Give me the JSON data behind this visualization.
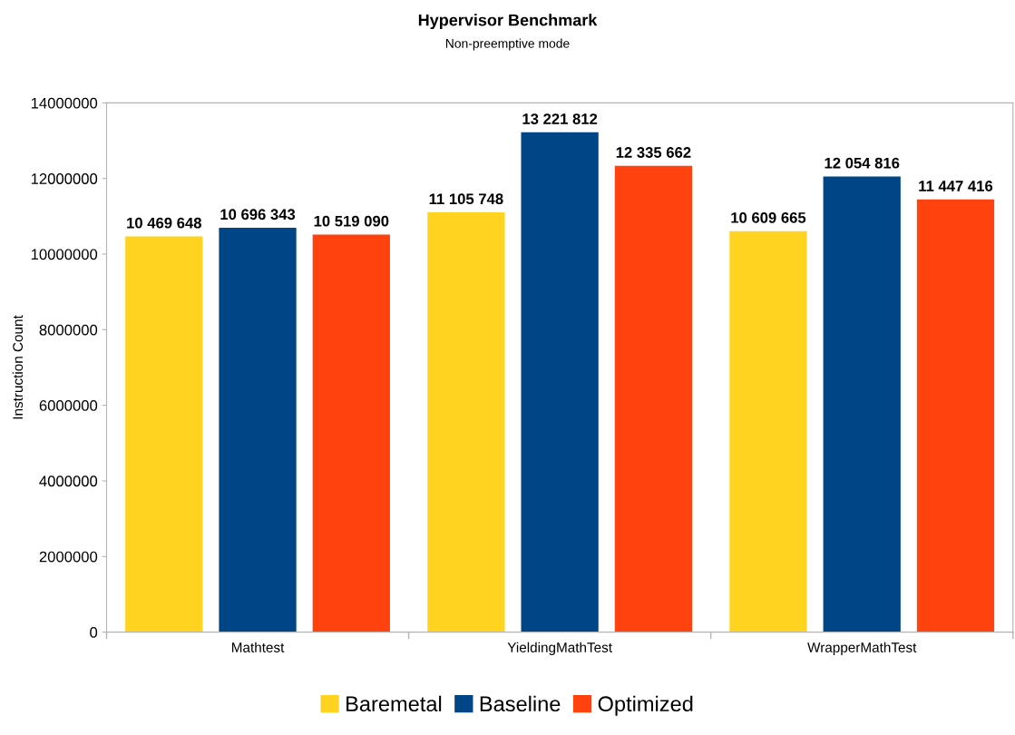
{
  "chart_data": {
    "type": "bar",
    "title": "Hypervisor Benchmark",
    "subtitle": "Non-preemptive mode",
    "ylabel": "Instruction Count",
    "categories": [
      "Mathtest",
      "YieldingMathTest",
      "WrapperMathTest"
    ],
    "series": [
      {
        "name": "Baremetal",
        "color": "#ffd320",
        "values": [
          10469648,
          11105748,
          10609665
        ],
        "value_labels": [
          "10 469 648",
          "11 105 748",
          "10 609 665"
        ]
      },
      {
        "name": "Baseline",
        "color": "#004586",
        "values": [
          10696343,
          13221812,
          12054816
        ],
        "value_labels": [
          "10 696 343",
          "13 221 812",
          "12 054 816"
        ]
      },
      {
        "name": "Optimized",
        "color": "#ff420e",
        "values": [
          10519090,
          12335662,
          11447416
        ],
        "value_labels": [
          "10 519 090",
          "12 335 662",
          "11 447 416"
        ]
      }
    ],
    "ylim": [
      0,
      14000000
    ],
    "yticks": [
      0,
      2000000,
      4000000,
      6000000,
      8000000,
      10000000,
      12000000,
      14000000
    ],
    "grid": false,
    "legend": "bottom"
  }
}
